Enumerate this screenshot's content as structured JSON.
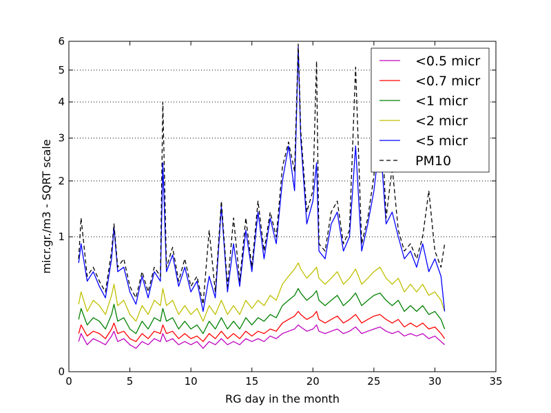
{
  "chart_data": {
    "type": "line",
    "xlabel": "RG day in the month",
    "ylabel": "micr.gr./m3 - SQRT scale",
    "xlim": [
      0,
      35
    ],
    "ylim": [
      0,
      6
    ],
    "y_scale": "sqrt",
    "x_ticks": [
      0,
      5,
      10,
      15,
      20,
      25,
      30,
      35
    ],
    "y_ticks": [
      0,
      1,
      2,
      3,
      4,
      5,
      6
    ],
    "x_tick_labels": [
      "0",
      "5",
      "10",
      "15",
      "20",
      "25",
      "30",
      "35"
    ],
    "y_tick_labels": [
      "0",
      "1",
      "2",
      "3",
      "4",
      "5",
      "6"
    ],
    "grid": {
      "y": true,
      "x": false,
      "style": "dotted"
    },
    "legend_position": "top-right",
    "x": [
      0.8,
      1.0,
      1.5,
      2.0,
      2.5,
      3.0,
      3.5,
      3.7,
      4.0,
      4.5,
      5.0,
      5.5,
      6.0,
      6.5,
      7.0,
      7.5,
      7.7,
      8.0,
      8.5,
      9.0,
      9.5,
      10.0,
      10.5,
      11.0,
      11.5,
      12.0,
      12.5,
      13.0,
      13.5,
      14.0,
      14.5,
      15.0,
      15.5,
      16.0,
      16.5,
      17.0,
      17.5,
      18.0,
      18.5,
      18.8,
      19.0,
      19.5,
      20.0,
      20.3,
      20.5,
      21.0,
      21.5,
      22.0,
      22.5,
      23.0,
      23.5,
      24.0,
      24.5,
      25.0,
      25.5,
      26.0,
      26.5,
      27.0,
      27.5,
      28.0,
      28.5,
      29.0,
      29.5,
      30.0,
      30.5,
      30.8
    ],
    "series": [
      {
        "name": "<0.5 micr",
        "color": "#bf00bf",
        "dash": "solid",
        "values": [
          0.05,
          0.08,
          0.04,
          0.06,
          0.05,
          0.04,
          0.07,
          0.09,
          0.05,
          0.06,
          0.04,
          0.03,
          0.05,
          0.04,
          0.06,
          0.05,
          0.08,
          0.05,
          0.06,
          0.04,
          0.05,
          0.04,
          0.05,
          0.03,
          0.05,
          0.04,
          0.06,
          0.04,
          0.05,
          0.04,
          0.06,
          0.05,
          0.06,
          0.05,
          0.07,
          0.06,
          0.08,
          0.09,
          0.1,
          0.12,
          0.11,
          0.09,
          0.1,
          0.12,
          0.09,
          0.08,
          0.09,
          0.1,
          0.08,
          0.09,
          0.11,
          0.08,
          0.09,
          0.1,
          0.11,
          0.09,
          0.08,
          0.09,
          0.07,
          0.08,
          0.07,
          0.08,
          0.06,
          0.07,
          0.05,
          0.04
        ]
      },
      {
        "name": "<0.7 micr",
        "color": "#ff0000",
        "dash": "solid",
        "values": [
          0.08,
          0.12,
          0.07,
          0.09,
          0.08,
          0.06,
          0.1,
          0.13,
          0.08,
          0.09,
          0.06,
          0.05,
          0.08,
          0.06,
          0.09,
          0.08,
          0.12,
          0.08,
          0.09,
          0.06,
          0.08,
          0.06,
          0.07,
          0.05,
          0.08,
          0.06,
          0.09,
          0.06,
          0.08,
          0.06,
          0.09,
          0.07,
          0.09,
          0.08,
          0.1,
          0.09,
          0.13,
          0.15,
          0.17,
          0.2,
          0.18,
          0.15,
          0.17,
          0.2,
          0.15,
          0.13,
          0.15,
          0.17,
          0.13,
          0.15,
          0.18,
          0.13,
          0.15,
          0.17,
          0.18,
          0.15,
          0.13,
          0.15,
          0.11,
          0.13,
          0.11,
          0.13,
          0.1,
          0.11,
          0.08,
          0.06
        ]
      },
      {
        "name": "<1 micr",
        "color": "#008000",
        "dash": "solid",
        "values": [
          0.15,
          0.22,
          0.12,
          0.16,
          0.14,
          0.1,
          0.18,
          0.25,
          0.14,
          0.16,
          0.1,
          0.08,
          0.14,
          0.1,
          0.16,
          0.14,
          0.22,
          0.14,
          0.16,
          0.1,
          0.14,
          0.1,
          0.12,
          0.08,
          0.14,
          0.1,
          0.16,
          0.1,
          0.14,
          0.1,
          0.16,
          0.12,
          0.16,
          0.14,
          0.18,
          0.16,
          0.24,
          0.28,
          0.32,
          0.38,
          0.34,
          0.28,
          0.32,
          0.36,
          0.28,
          0.24,
          0.28,
          0.32,
          0.24,
          0.28,
          0.34,
          0.24,
          0.28,
          0.32,
          0.34,
          0.28,
          0.24,
          0.28,
          0.2,
          0.24,
          0.2,
          0.24,
          0.18,
          0.2,
          0.15,
          0.1
        ]
      },
      {
        "name": "<2 micr",
        "color": "#bfbf00",
        "dash": "solid",
        "values": [
          0.25,
          0.35,
          0.2,
          0.28,
          0.24,
          0.18,
          0.32,
          0.42,
          0.24,
          0.28,
          0.18,
          0.14,
          0.24,
          0.18,
          0.28,
          0.24,
          0.38,
          0.24,
          0.28,
          0.18,
          0.24,
          0.18,
          0.22,
          0.14,
          0.24,
          0.18,
          0.28,
          0.18,
          0.24,
          0.18,
          0.28,
          0.22,
          0.28,
          0.24,
          0.32,
          0.28,
          0.42,
          0.5,
          0.58,
          0.65,
          0.58,
          0.48,
          0.55,
          0.6,
          0.48,
          0.42,
          0.48,
          0.55,
          0.42,
          0.48,
          0.58,
          0.42,
          0.48,
          0.55,
          0.6,
          0.48,
          0.42,
          0.48,
          0.35,
          0.42,
          0.35,
          0.42,
          0.32,
          0.35,
          0.28,
          0.2
        ]
      },
      {
        "name": "<5 micr",
        "color": "#0000ff",
        "dash": "solid",
        "values": [
          0.65,
          0.9,
          0.45,
          0.55,
          0.4,
          0.3,
          0.7,
          1.15,
          0.55,
          0.6,
          0.35,
          0.25,
          0.5,
          0.3,
          0.55,
          0.45,
          2.4,
          0.55,
          0.75,
          0.4,
          0.6,
          0.35,
          0.45,
          0.2,
          0.5,
          0.3,
          1.5,
          0.35,
          0.9,
          0.4,
          1.1,
          0.55,
          1.4,
          0.7,
          1.3,
          0.9,
          2.0,
          2.8,
          1.8,
          5.8,
          3.0,
          1.2,
          1.6,
          2.4,
          0.8,
          0.7,
          1.2,
          1.4,
          0.8,
          1.0,
          2.8,
          0.8,
          1.2,
          1.8,
          3.0,
          1.2,
          1.4,
          1.0,
          0.7,
          0.8,
          0.6,
          0.9,
          0.55,
          0.7,
          0.5,
          0.2
        ]
      },
      {
        "name": "PM10",
        "color": "#000000",
        "dash": "dashed",
        "values": [
          0.7,
          1.3,
          0.5,
          0.6,
          0.45,
          0.35,
          0.8,
          1.2,
          0.6,
          0.7,
          0.4,
          0.3,
          0.55,
          0.35,
          0.6,
          0.5,
          4.0,
          0.6,
          0.85,
          0.45,
          0.7,
          0.4,
          0.5,
          0.25,
          1.1,
          0.35,
          1.6,
          0.4,
          1.3,
          0.45,
          1.3,
          0.6,
          1.6,
          0.8,
          1.4,
          1.0,
          2.3,
          2.9,
          2.2,
          5.9,
          3.2,
          1.4,
          1.8,
          5.3,
          0.9,
          0.8,
          1.4,
          1.6,
          0.9,
          1.1,
          5.1,
          0.9,
          1.3,
          2.1,
          4.5,
          1.3,
          2.3,
          1.1,
          0.8,
          0.9,
          0.7,
          1.0,
          1.8,
          0.8,
          0.6,
          0.9
        ]
      }
    ]
  }
}
